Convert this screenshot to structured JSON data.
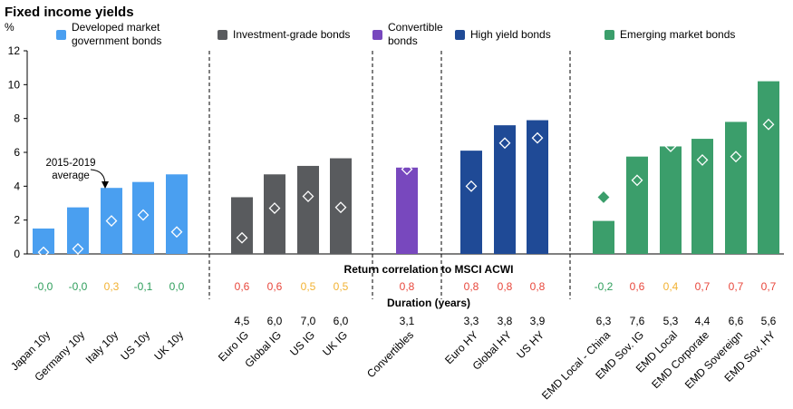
{
  "chart_data": {
    "type": "bar",
    "title": "Fixed income yields",
    "ylabel": "%",
    "ylim": [
      0,
      12
    ],
    "yticks": [
      0,
      2,
      4,
      6,
      8,
      10,
      12
    ],
    "grid": false,
    "legend_position": "top",
    "average_annotation": "2015-2019 average",
    "correlation_header": "Return correlation to MSCI ACWI",
    "duration_header": "Duration (years)",
    "groups": [
      {
        "name": "Developed market government bonds",
        "color": "#4A9FF0",
        "marker_color": "#FFFFFF",
        "categories": [
          "Japan 10y",
          "Germany 10y",
          "Italy 10y",
          "US 10y",
          "UK 10y"
        ],
        "values": [
          1.5,
          2.75,
          3.9,
          4.25,
          4.7
        ],
        "average": [
          0.1,
          0.3,
          1.95,
          2.3,
          1.3
        ],
        "correlation": [
          "-0,0",
          "-0,0",
          "0,3",
          "-0,1",
          "0,0"
        ],
        "duration": [
          "",
          "",
          "",
          "",
          ""
        ]
      },
      {
        "name": "Investment-grade bonds",
        "color": "#595B5E",
        "marker_color": "#FFFFFF",
        "categories": [
          "Euro IG",
          "Global IG",
          "US IG",
          "UK IG"
        ],
        "values": [
          3.35,
          4.7,
          5.2,
          5.65
        ],
        "average": [
          0.95,
          2.7,
          3.4,
          2.75
        ],
        "correlation": [
          "0,6",
          "0,6",
          "0,5",
          "0,5"
        ],
        "duration": [
          "4,5",
          "6,0",
          "7,0",
          "6,0"
        ]
      },
      {
        "name": "Convertible bonds",
        "color": "#7848BE",
        "marker_color": "#FFFFFF",
        "categories": [
          "Convertibles"
        ],
        "values": [
          5.1
        ],
        "average": [
          5.0
        ],
        "correlation": [
          "0,8"
        ],
        "duration": [
          "3,1"
        ]
      },
      {
        "name": "High yield bonds",
        "color": "#1F4A96",
        "marker_color": "#FFFFFF",
        "categories": [
          "Euro HY",
          "Global HY",
          "US HY"
        ],
        "values": [
          6.1,
          7.6,
          7.9
        ],
        "average": [
          4.0,
          6.55,
          6.85
        ],
        "correlation": [
          "0,8",
          "0,8",
          "0,8"
        ],
        "duration": [
          "3,3",
          "3,8",
          "3,9"
        ]
      },
      {
        "name": "Emerging market bonds",
        "color": "#3B9E6B",
        "marker_color": "#FFFFFF",
        "categories": [
          "EMD Local - China",
          "EMD Sov. IG",
          "EMD Local",
          "EMD Corporate",
          "EMD Sovereign",
          "EMD Sov. HY"
        ],
        "values": [
          1.95,
          5.75,
          6.35,
          6.8,
          7.8,
          10.2
        ],
        "average": [
          3.35,
          4.35,
          6.35,
          5.55,
          5.75,
          7.65
        ],
        "correlation": [
          "-0,2",
          "0,6",
          "0,4",
          "0,7",
          "0,7",
          "0,7"
        ],
        "duration": [
          "6,3",
          "7,6",
          "5,3",
          "4,4",
          "6,6",
          "5,6"
        ]
      }
    ],
    "legend": [
      {
        "lines": [
          "Developed market",
          "government bonds"
        ],
        "color": "#4A9FF0"
      },
      {
        "lines": [
          "Investment-grade bonds"
        ],
        "color": "#595B5E"
      },
      {
        "lines": [
          "Convertible",
          "bonds"
        ],
        "color": "#7848BE"
      },
      {
        "lines": [
          "High yield bonds"
        ],
        "color": "#1F4A96"
      },
      {
        "lines": [
          "Emerging market bonds"
        ],
        "color": "#3B9E6B"
      }
    ],
    "correlation_colors": {
      "green": "#2E9E5B",
      "yellow": "#F2B233",
      "red": "#E8473C"
    }
  }
}
